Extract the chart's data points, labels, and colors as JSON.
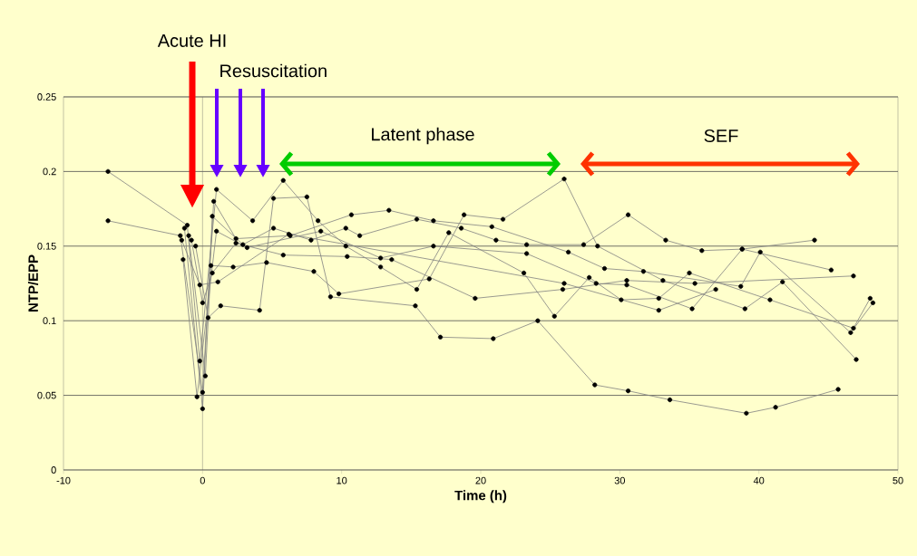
{
  "chart_data": {
    "type": "line",
    "xlabel": "Time (h)",
    "ylabel": "NTP/EPP",
    "xlim": [
      -10,
      50
    ],
    "xticks": [
      -10,
      0,
      10,
      20,
      30,
      40,
      50
    ],
    "ylim": [
      0,
      0.25
    ],
    "yticks": [
      0,
      0.05,
      0.1,
      0.15,
      0.2,
      0.25
    ],
    "grid": "y",
    "marker": "circle",
    "line_style": "solid",
    "ref_lines": [
      {
        "axis": "x",
        "value": 0,
        "label": null
      }
    ],
    "annotations": [
      "Acute HI",
      "Resuscitation",
      "Latent phase",
      "SEF"
    ],
    "series": [
      {
        "color": "#000000",
        "x": [
          -6.8,
          -1.1,
          -0.2,
          1.0,
          3.6,
          5.8,
          8.3,
          10.3,
          12.8,
          15.4,
          17.7,
          23.1,
          25.3,
          27.8,
          30.1,
          32.8,
          35.0,
          40.8,
          46.8,
          48.0
        ],
        "values": [
          0.2,
          0.164,
          0.073,
          0.188,
          0.167,
          0.194,
          0.167,
          0.15,
          0.136,
          0.121,
          0.159,
          0.132,
          0.103,
          0.129,
          0.114,
          0.115,
          0.132,
          0.114,
          0.095,
          0.115
        ]
      },
      {
        "color": "#000000",
        "x": [
          -6.8,
          -1.6,
          0.0,
          0.8,
          2.4,
          6.3,
          10.7,
          13.4,
          16.6,
          20.8,
          26.3,
          28.9,
          31.7,
          38.7,
          40.1,
          46.6,
          48.2
        ],
        "values": [
          0.167,
          0.157,
          0.052,
          0.18,
          0.155,
          0.157,
          0.171,
          0.174,
          0.167,
          0.163,
          0.146,
          0.135,
          0.133,
          0.123,
          0.146,
          0.092,
          0.112
        ]
      },
      {
        "color": "#000000",
        "x": [
          -1.3,
          0.0,
          0.7,
          2.9,
          5.1,
          7.8,
          10.3,
          11.3,
          15.4,
          18.6,
          21.1,
          23.3,
          27.4,
          30.6,
          33.3,
          35.9,
          38.8,
          44.0
        ],
        "values": [
          0.162,
          0.041,
          0.17,
          0.151,
          0.162,
          0.154,
          0.162,
          0.157,
          0.168,
          0.162,
          0.154,
          0.151,
          0.151,
          0.171,
          0.154,
          0.147,
          0.148,
          0.154
        ]
      },
      {
        "color": "#000000",
        "x": [
          -1.0,
          0.2,
          0.6,
          2.2,
          4.6,
          8.0,
          9.8,
          16.3,
          18.8,
          21.6,
          26.0,
          28.4,
          33.1,
          39.0,
          41.7,
          47.0
        ],
        "values": [
          0.157,
          0.063,
          0.137,
          0.136,
          0.139,
          0.133,
          0.118,
          0.128,
          0.171,
          0.168,
          0.195,
          0.15,
          0.127,
          0.108,
          0.126,
          0.074
        ]
      },
      {
        "color": "#000000",
        "x": [
          -0.8,
          0.0,
          0.7,
          2.4,
          5.8,
          10.4,
          13.6,
          19.6,
          25.9,
          30.5,
          35.4,
          46.8
        ],
        "values": [
          0.154,
          0.112,
          0.132,
          0.152,
          0.144,
          0.143,
          0.141,
          0.115,
          0.121,
          0.127,
          0.125,
          0.13
        ]
      },
      {
        "color": "#000000",
        "x": [
          -0.5,
          0.4,
          1.3,
          4.1,
          5.1,
          7.5,
          9.2,
          15.3,
          17.1,
          20.9,
          24.1,
          28.2,
          30.6,
          33.6,
          39.1,
          41.2,
          45.7
        ],
        "values": [
          0.15,
          0.102,
          0.11,
          0.107,
          0.182,
          0.183,
          0.116,
          0.11,
          0.089,
          0.088,
          0.1,
          0.057,
          0.053,
          0.047,
          0.038,
          0.042,
          0.054
        ]
      },
      {
        "color": "#000000",
        "x": [
          -1.4,
          -0.4,
          1.0,
          3.2,
          8.5,
          12.8,
          16.6,
          23.3,
          28.3,
          30.5,
          35.2,
          38.8,
          45.2
        ],
        "values": [
          0.141,
          0.049,
          0.16,
          0.149,
          0.16,
          0.142,
          0.15,
          0.145,
          0.125,
          0.124,
          0.108,
          0.148,
          0.134
        ]
      },
      {
        "color": "#000000",
        "x": [
          -1.5,
          -0.2,
          1.1,
          6.2,
          26.0,
          32.8,
          36.9
        ],
        "values": [
          0.154,
          0.124,
          0.126,
          0.158,
          0.125,
          0.107,
          0.121
        ]
      }
    ]
  }
}
